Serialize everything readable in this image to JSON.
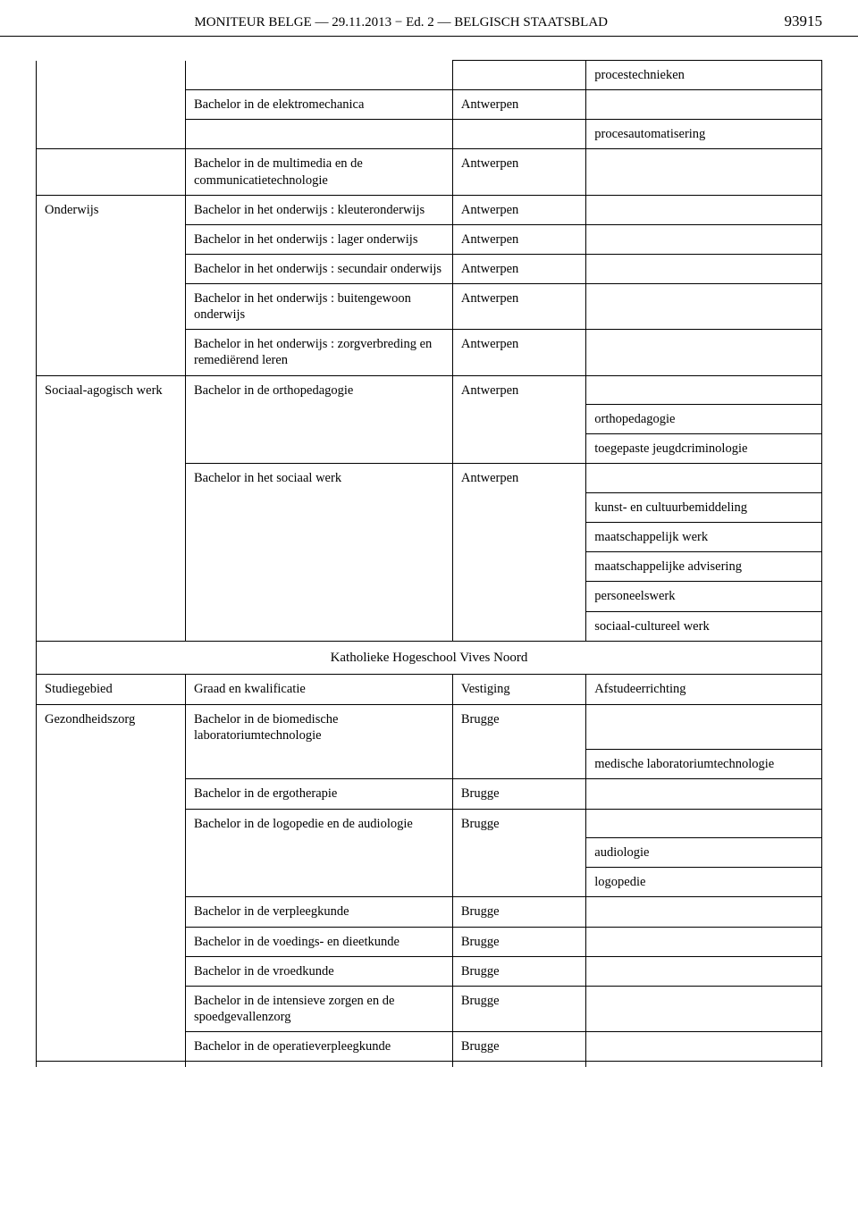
{
  "header": {
    "title": "MONITEUR BELGE — 29.11.2013 − Ed. 2 — BELGISCH STAATSBLAD",
    "page_number": "93915"
  },
  "table1": {
    "rows": [
      {
        "c1": "",
        "c2": "",
        "c3": "",
        "c4": "procestechnieken",
        "c1_open": "tb",
        "c2_open": "t"
      },
      {
        "c1": "",
        "c2": "Bachelor in de elektromechanica",
        "c3": "Antwerpen",
        "c4": "",
        "c1_open": "tb"
      },
      {
        "c1": "",
        "c2": "",
        "c3": "",
        "c4": "procesautomatisering",
        "c1_open": "tb",
        "c2_open": "b"
      },
      {
        "c1": "",
        "c2": "Bachelor in de multimedia en de communicatietechnologie",
        "c3": "Antwerpen",
        "c4": "",
        "c1_open": "b"
      },
      {
        "c1": "Onderwijs",
        "c2": "Bachelor in het onderwijs : kleuteronderwijs",
        "c3": "Antwerpen",
        "c4": "",
        "c1_open": "b"
      },
      {
        "c1": "",
        "c2": "Bachelor in het onderwijs : lager onderwijs",
        "c3": "Antwerpen",
        "c4": "",
        "c1_open": "tb"
      },
      {
        "c1": "",
        "c2": "Bachelor in het onderwijs : secundair onderwijs",
        "c3": "Antwerpen",
        "c4": "",
        "c1_open": "tb"
      },
      {
        "c1": "",
        "c2": "Bachelor in het onderwijs : buitengewoon onderwijs",
        "c3": "Antwerpen",
        "c4": "",
        "c1_open": "tb"
      },
      {
        "c1": "",
        "c2": "Bachelor in het onderwijs : zorgverbreding en remediërend leren",
        "c3": "Antwerpen",
        "c4": "",
        "c1_open": "t"
      },
      {
        "c1": "Sociaal-agogisch werk",
        "c2": "Bachelor in de orthopedagogie",
        "c3": "Antwerpen",
        "c4": "",
        "c1_open": "b",
        "c2_open": "b",
        "c3_open": "b"
      },
      {
        "c1": "",
        "c2": "",
        "c3": "",
        "c4": "orthopedagogie",
        "c1_open": "tb",
        "c2_open": "tb",
        "c3_open": "tb"
      },
      {
        "c1": "",
        "c2": "",
        "c3": "",
        "c4": "toegepaste jeugdcriminologie",
        "c1_open": "tb",
        "c2_open": "t",
        "c3_open": "t"
      },
      {
        "c1": "",
        "c2": "Bachelor in het sociaal werk",
        "c3": "Antwerpen",
        "c4": "",
        "c1_open": "tb",
        "c2_open": "b",
        "c3_open": "b"
      },
      {
        "c1": "",
        "c2": "",
        "c3": "",
        "c4": "kunst- en cultuurbemiddeling",
        "c1_open": "tb",
        "c2_open": "tb",
        "c3_open": "tb"
      },
      {
        "c1": "",
        "c2": "",
        "c3": "",
        "c4": "maatschappelijk werk",
        "c1_open": "tb",
        "c2_open": "tb",
        "c3_open": "tb"
      },
      {
        "c1": "",
        "c2": "",
        "c3": "",
        "c4": "maatschappelijke advisering",
        "c1_open": "tb",
        "c2_open": "tb",
        "c3_open": "tb"
      },
      {
        "c1": "",
        "c2": "",
        "c3": "",
        "c4": "personeelswerk",
        "c1_open": "tb",
        "c2_open": "tb",
        "c3_open": "tb"
      },
      {
        "c1": "",
        "c2": "",
        "c3": "",
        "c4": "sociaal-cultureel werk",
        "c1_open": "t",
        "c2_open": "t",
        "c3_open": "t"
      }
    ]
  },
  "section_title": "Katholieke Hogeschool Vives Noord",
  "table2": {
    "header": {
      "c1": "Studiegebied",
      "c2": "Graad en kwalificatie",
      "c3": "Vestiging",
      "c4": "Afstudeerrichting"
    },
    "rows": [
      {
        "c1": "Gezondheidszorg",
        "c2": "Bachelor in de biomedische laboratoriumtechnologie",
        "c3": "Brugge",
        "c4": "",
        "c1_open": "b",
        "c2_open": "b",
        "c3_open": "b"
      },
      {
        "c1": "",
        "c2": "",
        "c3": "",
        "c4": "medische laboratoriumtechnologie",
        "c1_open": "tb",
        "c2_open": "t",
        "c3_open": "t"
      },
      {
        "c1": "",
        "c2": "Bachelor in de ergotherapie",
        "c3": "Brugge",
        "c4": "",
        "c1_open": "tb"
      },
      {
        "c1": "",
        "c2": "Bachelor in de logopedie en de audiologie",
        "c3": "Brugge",
        "c4": "",
        "c1_open": "tb",
        "c2_open": "b",
        "c3_open": "b"
      },
      {
        "c1": "",
        "c2": "",
        "c3": "",
        "c4": "audiologie",
        "c1_open": "tb",
        "c2_open": "tb",
        "c3_open": "tb"
      },
      {
        "c1": "",
        "c2": "",
        "c3": "",
        "c4": "logopedie",
        "c1_open": "tb",
        "c2_open": "t",
        "c3_open": "t"
      },
      {
        "c1": "",
        "c2": "Bachelor in de verpleegkunde",
        "c3": "Brugge",
        "c4": "",
        "c1_open": "tb"
      },
      {
        "c1": "",
        "c2": "Bachelor in de voedings- en dieetkunde",
        "c3": "Brugge",
        "c4": "",
        "c1_open": "tb"
      },
      {
        "c1": "",
        "c2": "Bachelor in de vroedkunde",
        "c3": "Brugge",
        "c4": "",
        "c1_open": "tb"
      },
      {
        "c1": "",
        "c2": "Bachelor in de intensieve zorgen en de spoedgevallenzorg",
        "c3": "Brugge",
        "c4": "",
        "c1_open": "tb"
      },
      {
        "c1": "",
        "c2": "Bachelor in de operatieverpleegkunde",
        "c3": "Brugge",
        "c4": "",
        "c1_open": "tb"
      }
    ]
  }
}
